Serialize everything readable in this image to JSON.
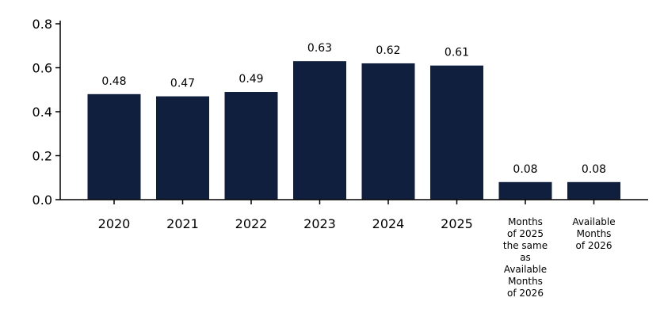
{
  "chart_data": {
    "type": "bar",
    "categories": [
      "2020",
      "2021",
      "2022",
      "2023",
      "2024",
      "2025",
      "Months of 2025 the same as Available Months of 2026",
      "Available Months of 2026"
    ],
    "category_lines": [
      [
        "2020"
      ],
      [
        "2021"
      ],
      [
        "2022"
      ],
      [
        "2023"
      ],
      [
        "2024"
      ],
      [
        "2025"
      ],
      [
        "Months",
        "of 2025",
        "the same",
        "as",
        "Available",
        "Months",
        "of 2026"
      ],
      [
        "Available",
        "Months",
        "of 2026"
      ]
    ],
    "values": [
      0.48,
      0.47,
      0.49,
      0.63,
      0.62,
      0.61,
      0.08,
      0.08
    ],
    "data_labels": [
      "0.48",
      "0.47",
      "0.49",
      "0.63",
      "0.62",
      "0.61",
      "0.08",
      "0.08"
    ],
    "title": "",
    "xlabel": "",
    "ylabel": "",
    "ylim": [
      0,
      0.8
    ],
    "yticks": [
      "0.0",
      "0.2",
      "0.4",
      "0.6",
      "0.8"
    ],
    "ytick_values": [
      0,
      0.2,
      0.4,
      0.6,
      0.8
    ],
    "bar_color": "#0f1f3d",
    "grid": false,
    "legend": "none"
  }
}
